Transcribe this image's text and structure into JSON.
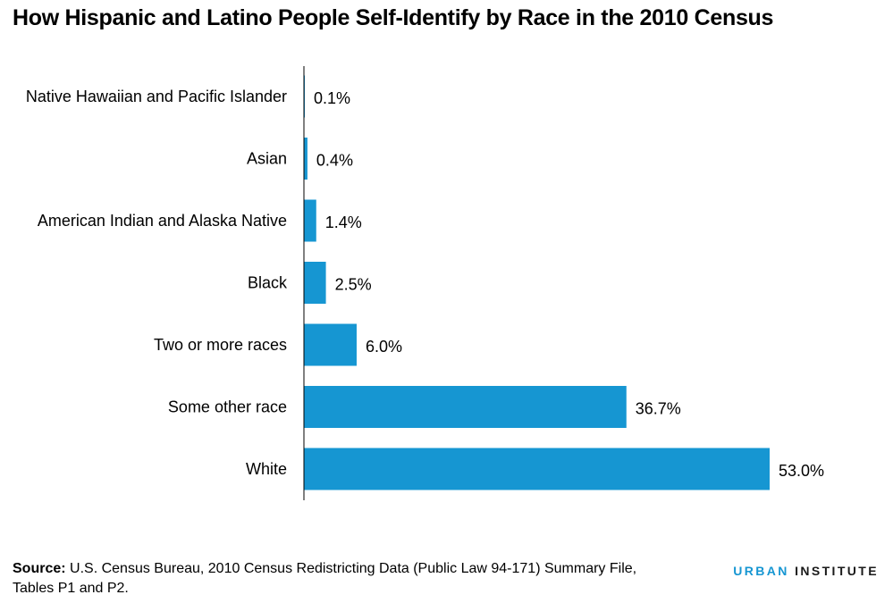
{
  "title": "How Hispanic and Latino People Self-Identify by Race in the 2010 Census",
  "colors": {
    "bar": "#1696d2",
    "axis": "#000000"
  },
  "chart_data": {
    "type": "bar",
    "orientation": "horizontal",
    "categories": [
      "Native Hawaiian and Pacific Islander",
      "Asian",
      "American Indian and Alaska Native",
      "Black",
      "Two or more races",
      "Some other race",
      "White"
    ],
    "values": [
      0.1,
      0.4,
      1.4,
      2.5,
      6.0,
      36.7,
      53.0
    ],
    "value_labels": [
      "0.1%",
      "0.4%",
      "1.4%",
      "2.5%",
      "6.0%",
      "36.7%",
      "53.0%"
    ],
    "unit": "%",
    "xlim": [
      0,
      53.0
    ],
    "grid": false
  },
  "source": {
    "label": "Source:",
    "text": "U.S. Census Bureau, 2010 Census Redistricting Data (Public Law 94-171) Summary File, Tables P1 and P2."
  },
  "brand": {
    "part1": "URBAN",
    "part2": "INSTITUTE"
  }
}
